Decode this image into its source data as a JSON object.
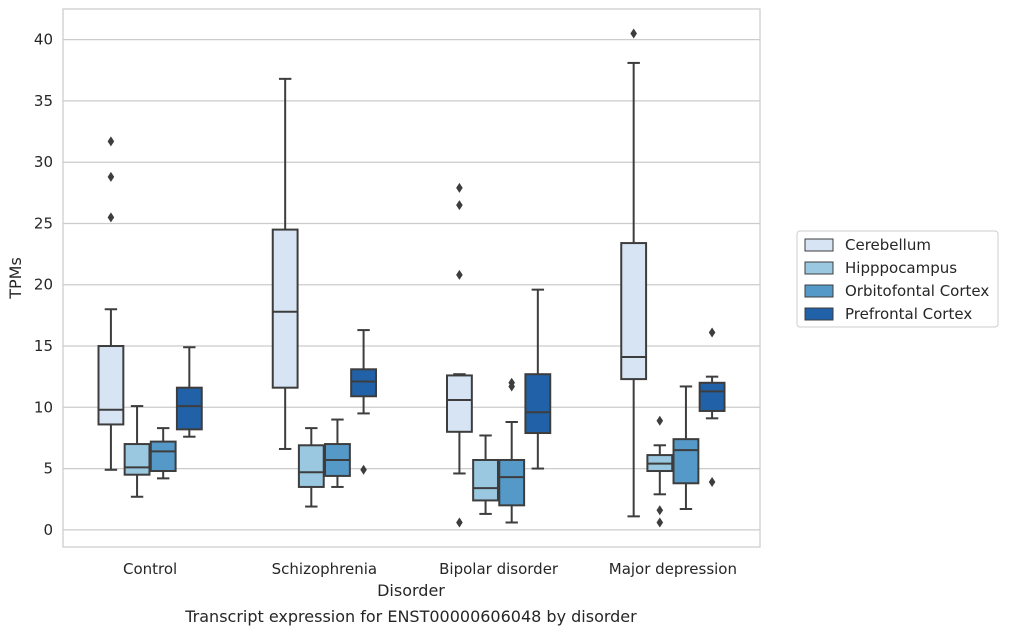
{
  "caption": "Transcript expression for ENST00000606048 by disorder",
  "chart_data": {
    "type": "box",
    "xlabel": "Disorder",
    "ylabel": "TPMs",
    "ylim": [
      -1.4,
      42.5
    ],
    "yticks": [
      0,
      5,
      10,
      15,
      20,
      25,
      30,
      35,
      40
    ],
    "grid": true,
    "legend_placement": "right",
    "categories": [
      "Control",
      "Schizophrenia",
      "Bipolar disorder",
      "Major depression"
    ],
    "series": [
      {
        "name": "Cerebellum",
        "color": "#d6e4f3",
        "boxes": [
          {
            "whislo": 4.9,
            "q1": 8.6,
            "med": 9.8,
            "q3": 15.0,
            "whishi": 18.0,
            "fliers": [
              25.5,
              28.8,
              31.7
            ]
          },
          {
            "whislo": 6.6,
            "q1": 11.6,
            "med": 17.8,
            "q3": 24.5,
            "whishi": 36.8,
            "fliers": []
          },
          {
            "whislo": 4.6,
            "q1": 8.0,
            "med": 10.6,
            "q3": 12.6,
            "whishi": 12.7,
            "fliers": [
              0.6,
              20.8,
              26.5,
              27.9
            ]
          },
          {
            "whislo": 1.1,
            "q1": 12.3,
            "med": 14.1,
            "q3": 23.4,
            "whishi": 38.1,
            "fliers": [
              40.5
            ]
          }
        ]
      },
      {
        "name": "Hipppocampus",
        "color": "#9ac8e0",
        "boxes": [
          {
            "whislo": 2.7,
            "q1": 4.5,
            "med": 5.1,
            "q3": 7.0,
            "whishi": 10.1,
            "fliers": []
          },
          {
            "whislo": 1.9,
            "q1": 3.5,
            "med": 4.7,
            "q3": 6.9,
            "whishi": 8.3,
            "fliers": []
          },
          {
            "whislo": 1.3,
            "q1": 2.4,
            "med": 3.4,
            "q3": 5.7,
            "whishi": 7.7,
            "fliers": []
          },
          {
            "whislo": 2.9,
            "q1": 4.8,
            "med": 5.4,
            "q3": 6.1,
            "whishi": 6.9,
            "fliers": [
              0.6,
              1.6,
              8.9
            ]
          }
        ]
      },
      {
        "name": "Orbitofontal Cortex",
        "color": "#5599c8",
        "boxes": [
          {
            "whislo": 4.2,
            "q1": 4.8,
            "med": 6.4,
            "q3": 7.2,
            "whishi": 8.3,
            "fliers": []
          },
          {
            "whislo": 3.5,
            "q1": 4.4,
            "med": 5.7,
            "q3": 7.0,
            "whishi": 9.0,
            "fliers": []
          },
          {
            "whislo": 0.6,
            "q1": 2.0,
            "med": 4.3,
            "q3": 5.7,
            "whishi": 8.8,
            "fliers": [
              11.7,
              12.0
            ]
          },
          {
            "whislo": 1.7,
            "q1": 3.8,
            "med": 6.5,
            "q3": 7.4,
            "whishi": 11.7,
            "fliers": []
          }
        ]
      },
      {
        "name": "Prefrontal Cortex",
        "color": "#2161a7",
        "boxes": [
          {
            "whislo": 7.6,
            "q1": 8.2,
            "med": 10.1,
            "q3": 11.6,
            "whishi": 14.9,
            "fliers": []
          },
          {
            "whislo": 9.5,
            "q1": 10.9,
            "med": 12.1,
            "q3": 13.1,
            "whishi": 16.3,
            "fliers": [
              4.9
            ]
          },
          {
            "whislo": 5.0,
            "q1": 7.9,
            "med": 9.6,
            "q3": 12.7,
            "whishi": 19.6,
            "fliers": []
          },
          {
            "whislo": 9.1,
            "q1": 9.7,
            "med": 11.3,
            "q3": 12.0,
            "whishi": 12.5,
            "fliers": [
              3.9,
              16.1
            ]
          }
        ]
      }
    ]
  }
}
